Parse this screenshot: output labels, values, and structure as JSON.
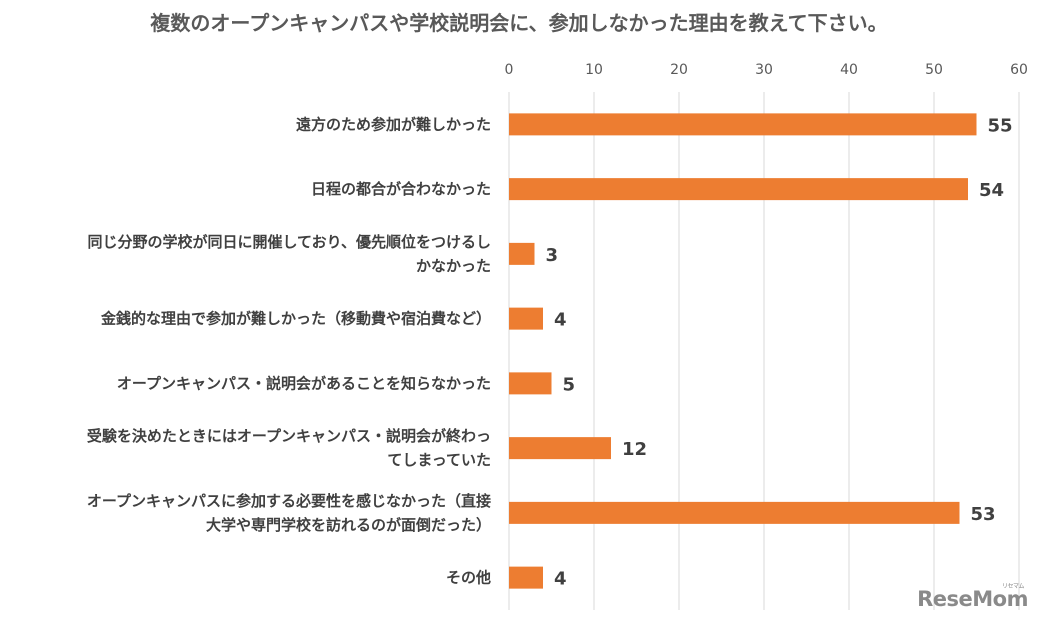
{
  "chart_data": {
    "type": "bar",
    "orientation": "horizontal",
    "title": "複数のオープンキャンパスや学校説明会に、参加しなかった理由を教えて下さい。",
    "categories": [
      [
        "遠方のため参加が難しかった"
      ],
      [
        "日程の都合が合わなかった"
      ],
      [
        "同じ分野の学校が同日に開催しており、優先順位をつけるし",
        "かなかった"
      ],
      [
        "金銭的な理由で参加が難しかった（移動費や宿泊費など）"
      ],
      [
        "オープンキャンパス・説明会があることを知らなかった"
      ],
      [
        "受験を決めたときにはオープンキャンパス・説明会が終わっ",
        "てしまっていた"
      ],
      [
        "オープンキャンパスに参加する必要性を感じなかった（直接",
        "大学や専門学校を訪れるのが面倒だった）"
      ],
      [
        "その他"
      ]
    ],
    "values": [
      55,
      54,
      3,
      4,
      5,
      12,
      53,
      4
    ],
    "xlim": [
      0,
      60
    ],
    "ticks": [
      0,
      10,
      20,
      30,
      40,
      50,
      60
    ],
    "axis_position": "top",
    "grid": true,
    "bar_color": "#ED7D31",
    "grid_color": "#D9D9D9"
  },
  "watermark": {
    "text": "ReseMom",
    "subtext": "リセマム"
  }
}
